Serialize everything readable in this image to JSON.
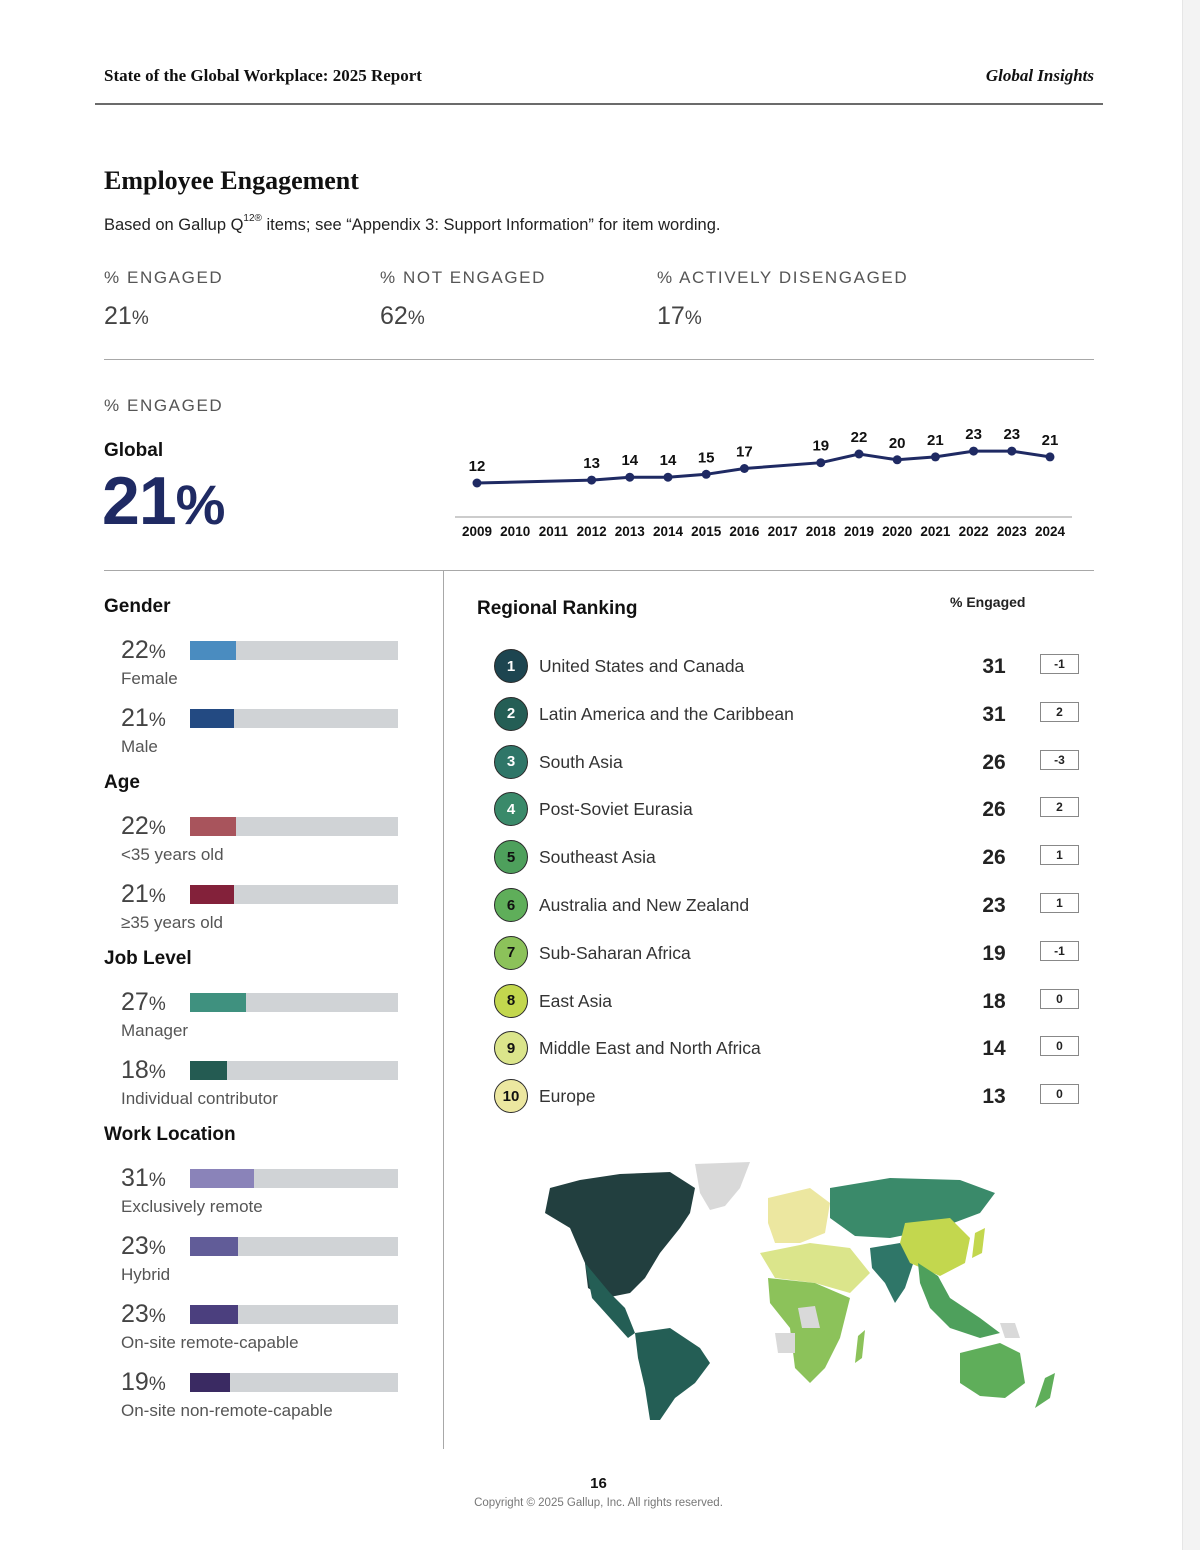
{
  "header": {
    "title": "State of the Global Workplace: 2025 Report",
    "section": "Global Insights"
  },
  "page": {
    "title": "Employee Engagement",
    "subtitle_before": "Based on Gallup Q",
    "subtitle_sup": "12®",
    "subtitle_after": " items; see “Appendix 3: Support Information” for item wording."
  },
  "kpis": [
    {
      "label": "% ENGAGED",
      "value": "21",
      "unit": "%"
    },
    {
      "label": "% NOT ENGAGED",
      "value": "62",
      "unit": "%"
    },
    {
      "label": "% ACTIVELY DISENGAGED",
      "value": "17",
      "unit": "%"
    }
  ],
  "global": {
    "section_label": "% ENGAGED",
    "name": "Global",
    "value": "21",
    "unit": "%"
  },
  "chart_data": {
    "type": "line",
    "title": "% Engaged, Global",
    "x": [
      "2009",
      "2010",
      "2011",
      "2012",
      "2013",
      "2014",
      "2015",
      "2016",
      "2017",
      "2018",
      "2019",
      "2020",
      "2021",
      "2022",
      "2023",
      "2024"
    ],
    "series": [
      {
        "name": "% Engaged",
        "values": [
          12,
          null,
          null,
          13,
          14,
          14,
          15,
          17,
          null,
          19,
          22,
          20,
          21,
          23,
          23,
          21
        ]
      }
    ],
    "xlabel": "",
    "ylabel": "",
    "grid": false,
    "color": "#1f2a63"
  },
  "demographics": [
    {
      "title": "Gender",
      "rows": [
        {
          "value": "22",
          "unit": "%",
          "label": "Female",
          "pct": 22,
          "color": "#4a8cc0"
        },
        {
          "value": "21",
          "unit": "%",
          "label": "Male",
          "pct": 21,
          "color": "#234a82"
        }
      ]
    },
    {
      "title": "Age",
      "rows": [
        {
          "value": "22",
          "unit": "%",
          "label": "<35 years old",
          "pct": 22,
          "color": "#a8545c"
        },
        {
          "value": "21",
          "unit": "%",
          "label": "≥35 years old",
          "pct": 21,
          "color": "#83213a"
        }
      ]
    },
    {
      "title": "Job Level",
      "rows": [
        {
          "value": "27",
          "unit": "%",
          "label": "Manager",
          "pct": 27,
          "color": "#3f917f"
        },
        {
          "value": "18",
          "unit": "%",
          "label": "Individual contributor",
          "pct": 18,
          "color": "#245b52"
        }
      ]
    },
    {
      "title": "Work Location",
      "rows": [
        {
          "value": "31",
          "unit": "%",
          "label": "Exclusively remote",
          "pct": 31,
          "color": "#8a83b9"
        },
        {
          "value": "23",
          "unit": "%",
          "label": "Hybrid",
          "pct": 23,
          "color": "#615c98"
        },
        {
          "value": "23",
          "unit": "%",
          "label": "On-site remote-capable",
          "pct": 23,
          "color": "#4b3f7e"
        },
        {
          "value": "19",
          "unit": "%",
          "label": "On-site non-remote-capable",
          "pct": 19,
          "color": "#3a2a62"
        }
      ]
    }
  ],
  "ranking": {
    "title": "Regional Ranking",
    "column_header": "% Engaged",
    "rows": [
      {
        "rank": "1",
        "name": "United States and Canada",
        "value": "31",
        "change": "-1",
        "color": "#1d4550",
        "text": "#ffffff"
      },
      {
        "rank": "2",
        "name": "Latin America and the Caribbean",
        "value": "31",
        "change": "2",
        "color": "#245e55",
        "text": "#ffffff"
      },
      {
        "rank": "3",
        "name": "South Asia",
        "value": "26",
        "change": "-3",
        "color": "#2f7668",
        "text": "#ffffff"
      },
      {
        "rank": "4",
        "name": "Post-Soviet Eurasia",
        "value": "26",
        "change": "2",
        "color": "#3a8a6a",
        "text": "#ffffff"
      },
      {
        "rank": "5",
        "name": "Southeast Asia",
        "value": "26",
        "change": "1",
        "color": "#4ea05c",
        "text": "#111111"
      },
      {
        "rank": "6",
        "name": "Australia and New Zealand",
        "value": "23",
        "change": "1",
        "color": "#5fae5a",
        "text": "#111111"
      },
      {
        "rank": "7",
        "name": "Sub-Saharan Africa",
        "value": "19",
        "change": "-1",
        "color": "#8cc25a",
        "text": "#111111"
      },
      {
        "rank": "8",
        "name": "East Asia",
        "value": "18",
        "change": "0",
        "color": "#c3d74e",
        "text": "#111111"
      },
      {
        "rank": "9",
        "name": "Middle East and North Africa",
        "value": "14",
        "change": "0",
        "color": "#dbe58b",
        "text": "#111111"
      },
      {
        "rank": "10",
        "name": "Europe",
        "value": "13",
        "change": "0",
        "color": "#ece7a0",
        "text": "#111111"
      }
    ]
  },
  "footer": {
    "page_number": "16",
    "copyright": "Copyright © 2025 Gallup, Inc. All rights reserved."
  }
}
